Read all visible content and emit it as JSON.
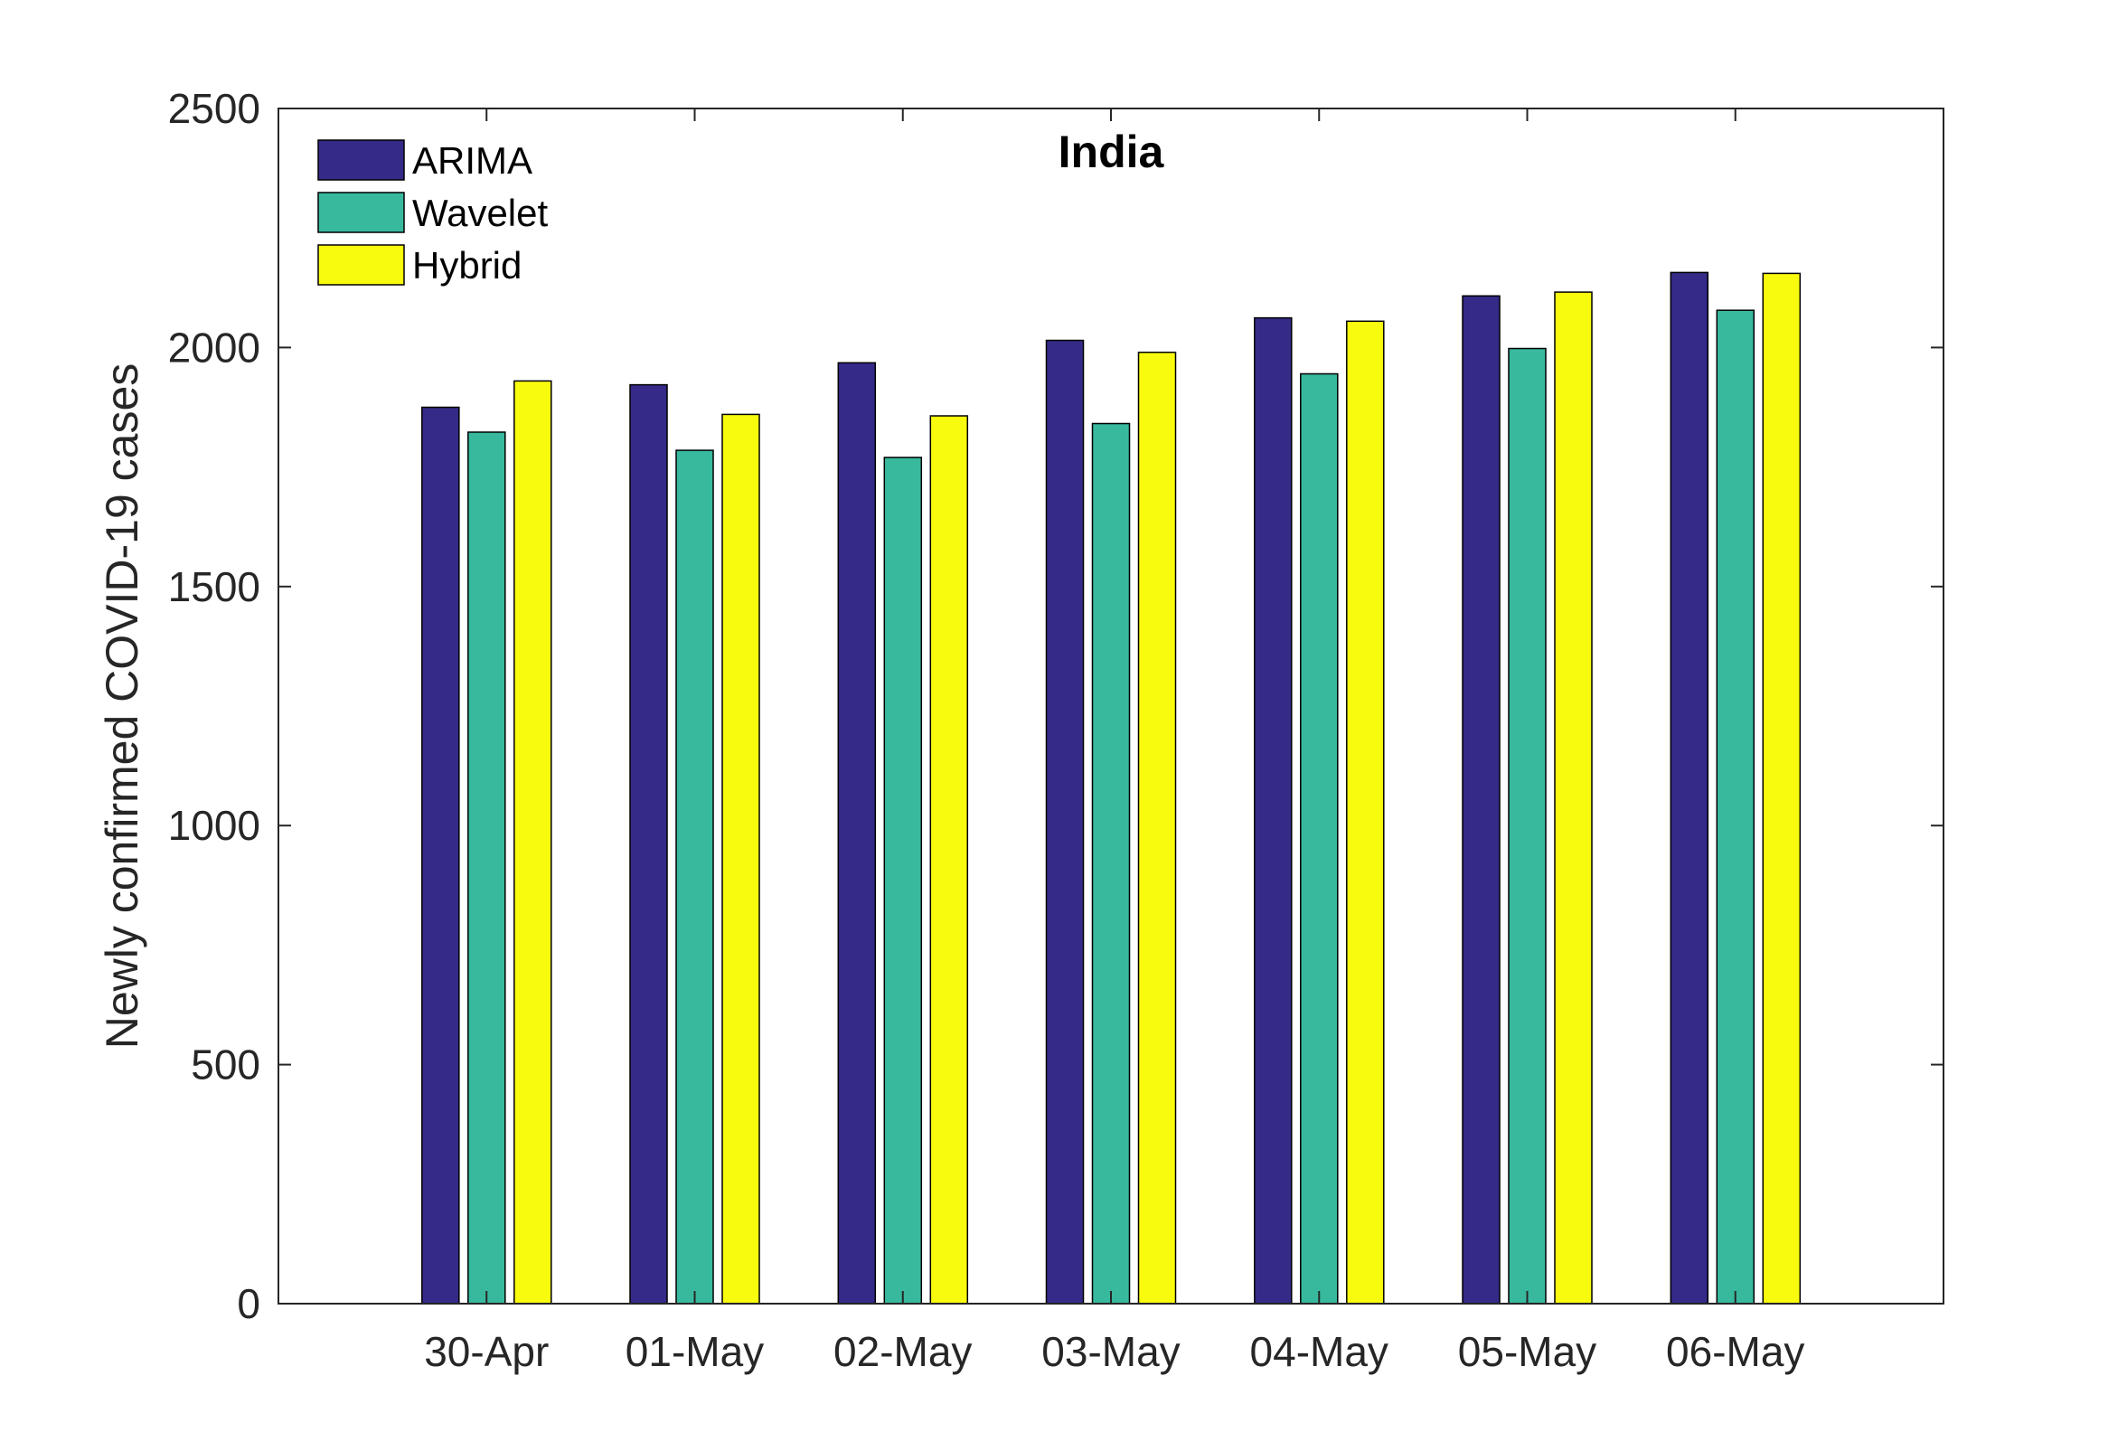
{
  "chart_data": {
    "type": "bar",
    "title": "India",
    "xlabel": "",
    "ylabel": "Newly confirmed COVID-19 cases",
    "categories": [
      "30-Apr",
      "01-May",
      "02-May",
      "03-May",
      "04-May",
      "05-May",
      "06-May"
    ],
    "series": [
      {
        "name": "ARIMA",
        "color": "#352a87",
        "values": [
          1875,
          1922,
          1968,
          2015,
          2062,
          2108,
          2157
        ]
      },
      {
        "name": "Wavelet",
        "color": "#38b99e",
        "values": [
          1823,
          1785,
          1770,
          1841,
          1945,
          1998,
          2078
        ]
      },
      {
        "name": "Hybrid",
        "color": "#f9fb0e",
        "values": [
          1930,
          1860,
          1857,
          1990,
          2055,
          2116,
          2155
        ]
      }
    ],
    "ylim": [
      0,
      2500
    ],
    "yticks": [
      0,
      500,
      1000,
      1500,
      2000,
      2500
    ],
    "xlim": [
      0,
      8
    ],
    "grid": false,
    "legend_position": "top-left",
    "box": true
  }
}
